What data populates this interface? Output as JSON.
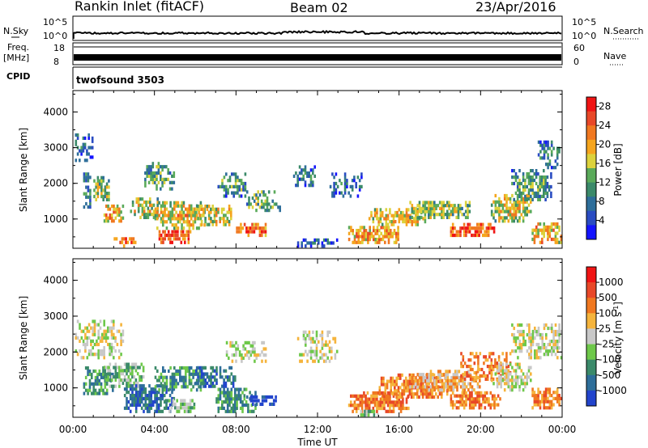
{
  "header": {
    "station": "Rankin Inlet (fitACF)",
    "beam": "Beam 02",
    "date": "23/Apr/2016"
  },
  "top_panels": {
    "nsky_label": "N.Sky",
    "nsky_ticks": [
      "10^5",
      "10^0"
    ],
    "nsearch_label": "N.Search",
    "nsearch_ticks": [
      "10^5",
      "10^0"
    ],
    "freq_label": "Freq.",
    "freq_unit": "[MHz]",
    "freq_ticks": [
      "18",
      "8"
    ],
    "nave_label": "Nave",
    "nave_ticks": [
      "60",
      "0"
    ],
    "cpid_label": "CPID",
    "cpid_value": "twofsound 3503"
  },
  "chart_data": [
    {
      "type": "heatmap",
      "quantity": "power",
      "xlabel": "",
      "ylabel": "Slant Range [km]",
      "y_ticks": [
        "1000",
        "2000",
        "3000",
        "4000"
      ],
      "ylim": [
        180,
        4600
      ],
      "xlim": [
        0,
        24
      ],
      "colorbar_label": "Power [dB]",
      "colorbar_ticks": [
        "4",
        "8",
        "12",
        "16",
        "20",
        "24",
        "28"
      ],
      "colorbar_colors": [
        "#1414ff",
        "#2a4cc2",
        "#2e6e9a",
        "#3b8a6a",
        "#5aaa5a",
        "#dcd23c",
        "#f5a51e",
        "#f07820",
        "#e84828",
        "#f01414"
      ],
      "colorbar_range": [
        0,
        30
      ],
      "blobs": [
        [
          0.5,
          0.9,
          1200,
          2400,
          0.45,
          6
        ],
        [
          1.0,
          1.8,
          1500,
          2200,
          0.5,
          12
        ],
        [
          1.5,
          2.5,
          900,
          1400,
          0.5,
          18
        ],
        [
          2.8,
          4.2,
          1000,
          1600,
          0.45,
          14
        ],
        [
          3.5,
          5.0,
          1800,
          2600,
          0.4,
          8
        ],
        [
          4.0,
          6.5,
          700,
          1500,
          0.5,
          16
        ],
        [
          4.2,
          5.8,
          300,
          700,
          0.55,
          24
        ],
        [
          6.0,
          7.8,
          800,
          1400,
          0.4,
          15
        ],
        [
          7.0,
          8.5,
          1600,
          2300,
          0.35,
          7
        ],
        [
          8.0,
          9.5,
          500,
          900,
          0.5,
          22
        ],
        [
          8.5,
          10.2,
          1200,
          1800,
          0.35,
          10
        ],
        [
          10.8,
          12.0,
          1900,
          2500,
          0.3,
          5
        ],
        [
          12.5,
          14.2,
          1600,
          2300,
          0.25,
          4
        ],
        [
          13.5,
          16.0,
          300,
          800,
          0.55,
          18
        ],
        [
          14.5,
          17.5,
          800,
          1300,
          0.5,
          16
        ],
        [
          16.5,
          19.5,
          1000,
          1500,
          0.5,
          12
        ],
        [
          18.5,
          20.8,
          500,
          900,
          0.55,
          24
        ],
        [
          20.5,
          22.5,
          900,
          1700,
          0.5,
          14
        ],
        [
          21.5,
          23.5,
          1500,
          2400,
          0.45,
          8
        ],
        [
          22.5,
          24.0,
          300,
          900,
          0.5,
          18
        ],
        [
          22.8,
          23.9,
          2400,
          3200,
          0.3,
          5
        ],
        [
          0.1,
          1.0,
          2600,
          3400,
          0.25,
          4
        ],
        [
          2.0,
          3.2,
          200,
          500,
          0.45,
          22
        ],
        [
          11.0,
          13.0,
          200,
          450,
          0.3,
          2
        ]
      ]
    },
    {
      "type": "heatmap",
      "quantity": "velocity",
      "xlabel": "Time UT",
      "ylabel": "Slant Range [km]",
      "x_ticks": [
        "00:00",
        "04:00",
        "08:00",
        "12:00",
        "16:00",
        "20:00",
        "00:00"
      ],
      "y_ticks": [
        "1000",
        "2000",
        "3000",
        "4000"
      ],
      "ylim": [
        180,
        4600
      ],
      "xlim": [
        0,
        24
      ],
      "colorbar_label": "Velocity [m s^-1]",
      "colorbar_ticks": [
        "1000",
        "500",
        "100",
        "25",
        "-25",
        "-100",
        "-500",
        "-1000"
      ],
      "colorbar_colors": [
        "#2244cc",
        "#2e6e9a",
        "#3b8a6a",
        "#6ec84a",
        "#c8c8c8",
        "#f5b43c",
        "#f07820",
        "#e84828",
        "#f01414"
      ],
      "blobs": [
        [
          0.1,
          2.5,
          1800,
          2900,
          0.4,
          4
        ],
        [
          0.5,
          2.0,
          800,
          1600,
          0.45,
          2
        ],
        [
          1.5,
          3.5,
          1000,
          1700,
          0.45,
          3
        ],
        [
          2.5,
          5.0,
          300,
          1100,
          0.5,
          1
        ],
        [
          4.0,
          6.5,
          900,
          1600,
          0.45,
          2
        ],
        [
          4.5,
          6.0,
          300,
          700,
          0.5,
          3
        ],
        [
          6.0,
          8.0,
          1000,
          1600,
          0.4,
          1
        ],
        [
          7.0,
          9.0,
          300,
          1000,
          0.45,
          2
        ],
        [
          7.5,
          9.5,
          1700,
          2300,
          0.3,
          4
        ],
        [
          8.5,
          10.0,
          500,
          800,
          0.5,
          0
        ],
        [
          11.0,
          13.0,
          1700,
          2600,
          0.3,
          4
        ],
        [
          13.5,
          16.5,
          300,
          900,
          0.55,
          6
        ],
        [
          15.0,
          18.5,
          700,
          1400,
          0.5,
          6
        ],
        [
          16.5,
          20.0,
          900,
          1500,
          0.5,
          5
        ],
        [
          18.5,
          21.0,
          400,
          900,
          0.5,
          6
        ],
        [
          19.0,
          21.5,
          1200,
          2000,
          0.35,
          6
        ],
        [
          20.5,
          22.5,
          900,
          1700,
          0.45,
          4
        ],
        [
          21.5,
          24.0,
          1800,
          2800,
          0.4,
          4
        ],
        [
          22.5,
          24.0,
          400,
          1000,
          0.5,
          6
        ],
        [
          14.0,
          15.0,
          200,
          400,
          0.45,
          3
        ]
      ]
    }
  ]
}
